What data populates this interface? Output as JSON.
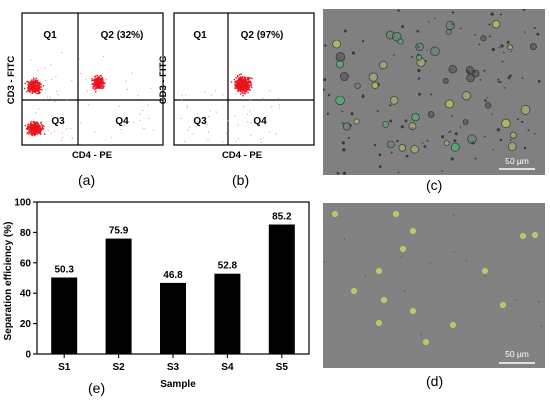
{
  "panels": {
    "a": {
      "label": "(a)",
      "quadrants": {
        "q1": "Q1",
        "q2": "Q2 (32%)",
        "q3": "Q3",
        "q4": "Q4"
      },
      "xlabel": "CD4 - PE",
      "ylabel": "CD3 - FITC"
    },
    "b": {
      "label": "(b)",
      "quadrants": {
        "q1": "Q1",
        "q2": "Q2 (97%)",
        "q3": "Q3",
        "q4": "Q4"
      },
      "xlabel": "CD4 - PE",
      "ylabel": "CD3 - FITC"
    },
    "c": {
      "label": "(c)",
      "scale_bar": "50 µm"
    },
    "d": {
      "label": "(d)",
      "scale_bar": "50 µm"
    },
    "e": {
      "label": "(e)"
    }
  },
  "colors": {
    "dot_color": "#e8141e",
    "bar_color": "#000000",
    "micrograph_bg": "#808080",
    "cell_green": "#3fc06a",
    "cell_yellow": "#d8d84a"
  },
  "chart_data": {
    "type": "bar",
    "categories": [
      "S1",
      "S2",
      "S3",
      "S4",
      "S5"
    ],
    "values": [
      50.3,
      75.9,
      46.8,
      52.8,
      85.2
    ],
    "data_labels": [
      "50.3",
      "75.9",
      "46.8",
      "52.8",
      "85.2"
    ],
    "xlabel": "Sample",
    "ylabel": "Separation efficiency (%)",
    "ylim": [
      0,
      100
    ],
    "yticks": [
      0,
      20,
      40,
      60,
      80,
      100
    ],
    "grid": false
  }
}
